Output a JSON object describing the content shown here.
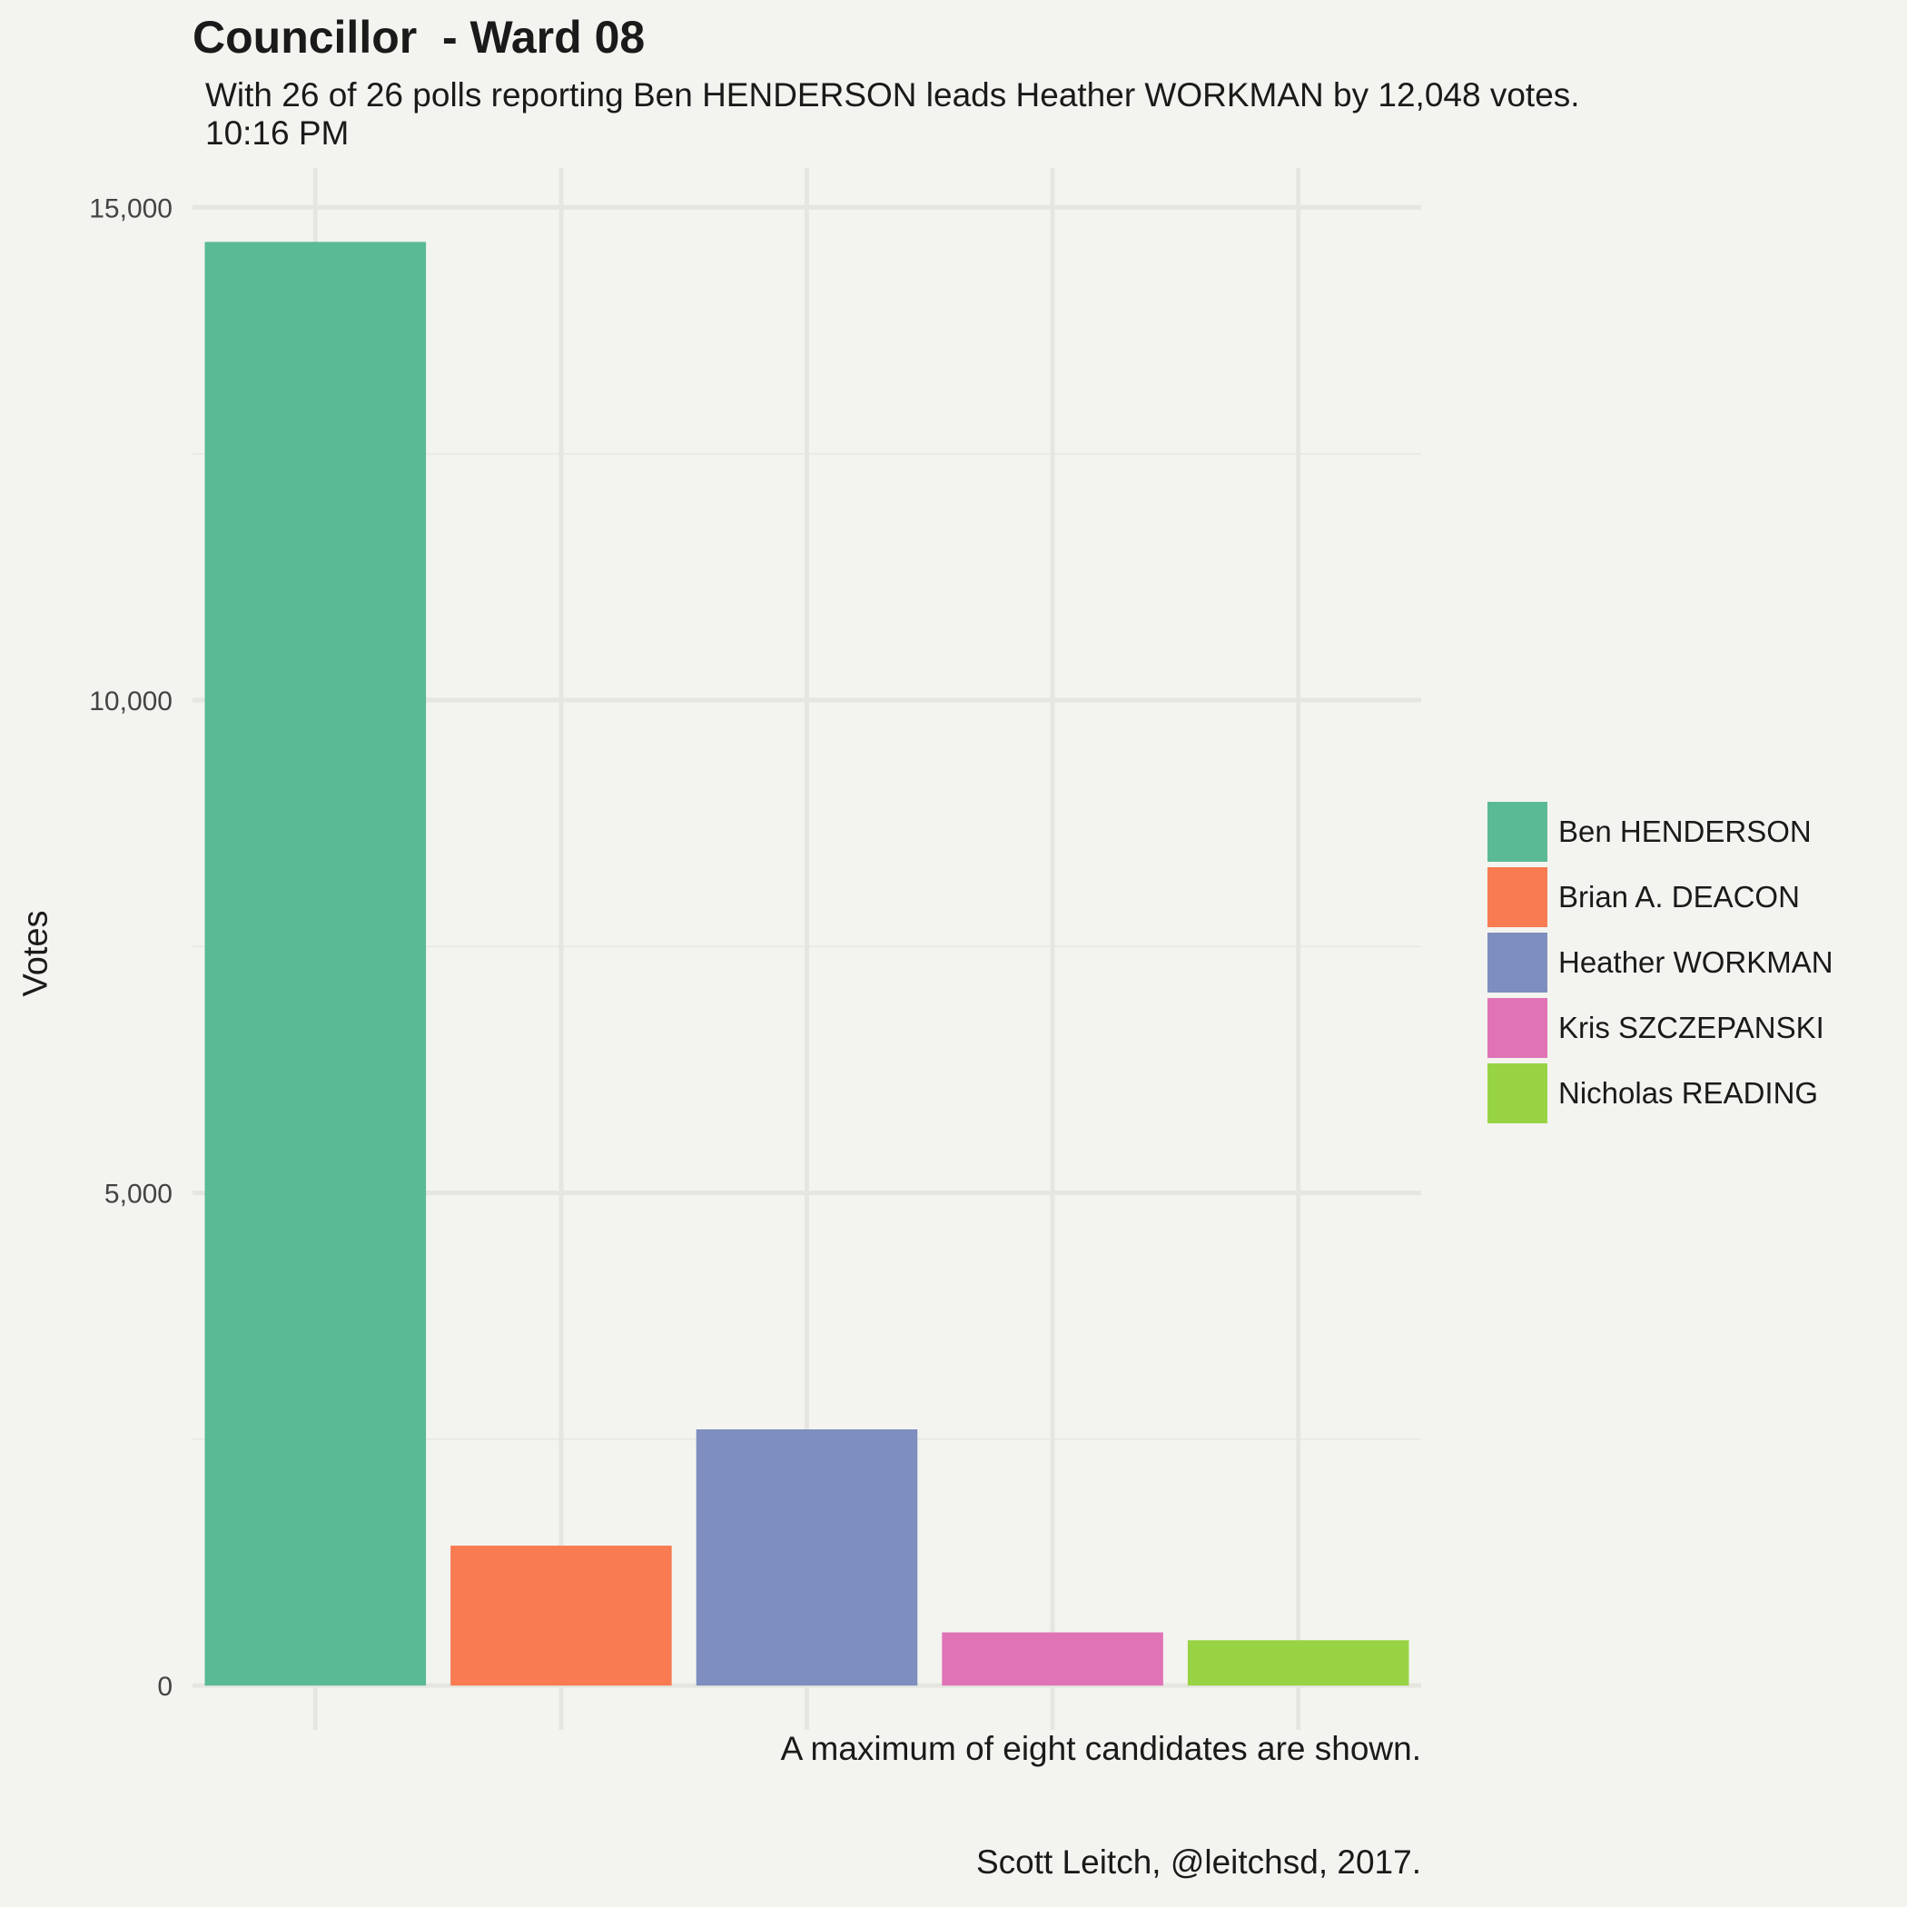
{
  "chart_data": {
    "type": "bar",
    "title": "Councillor  - Ward 08",
    "subtitle": "With 26 of 26 polls reporting Ben HENDERSON leads Heather WORKMAN by 12,048 votes.\n10:16 PM",
    "xlabel": "",
    "ylabel": "Votes",
    "ylim": [
      -450,
      15400
    ],
    "yticks": [
      0,
      5000,
      10000,
      15000
    ],
    "ytick_labels": [
      "0",
      "5,000",
      "10,000",
      "15,000"
    ],
    "grid": true,
    "legend_position": "right",
    "categories": [
      "Ben HENDERSON",
      "Brian A. DEACON",
      "Heather WORKMAN",
      "Kris SZCZEPANSKI",
      "Nicholas READING"
    ],
    "values": [
      14650,
      1420,
      2600,
      540,
      460
    ],
    "colors": [
      "#59ba93",
      "#f87b52",
      "#7d8ebf",
      "#e073b6",
      "#98d344"
    ]
  },
  "captions": [
    "A maximum of eight candidates are shown.",
    "Scott Leitch, @leitchsd, 2017."
  ]
}
